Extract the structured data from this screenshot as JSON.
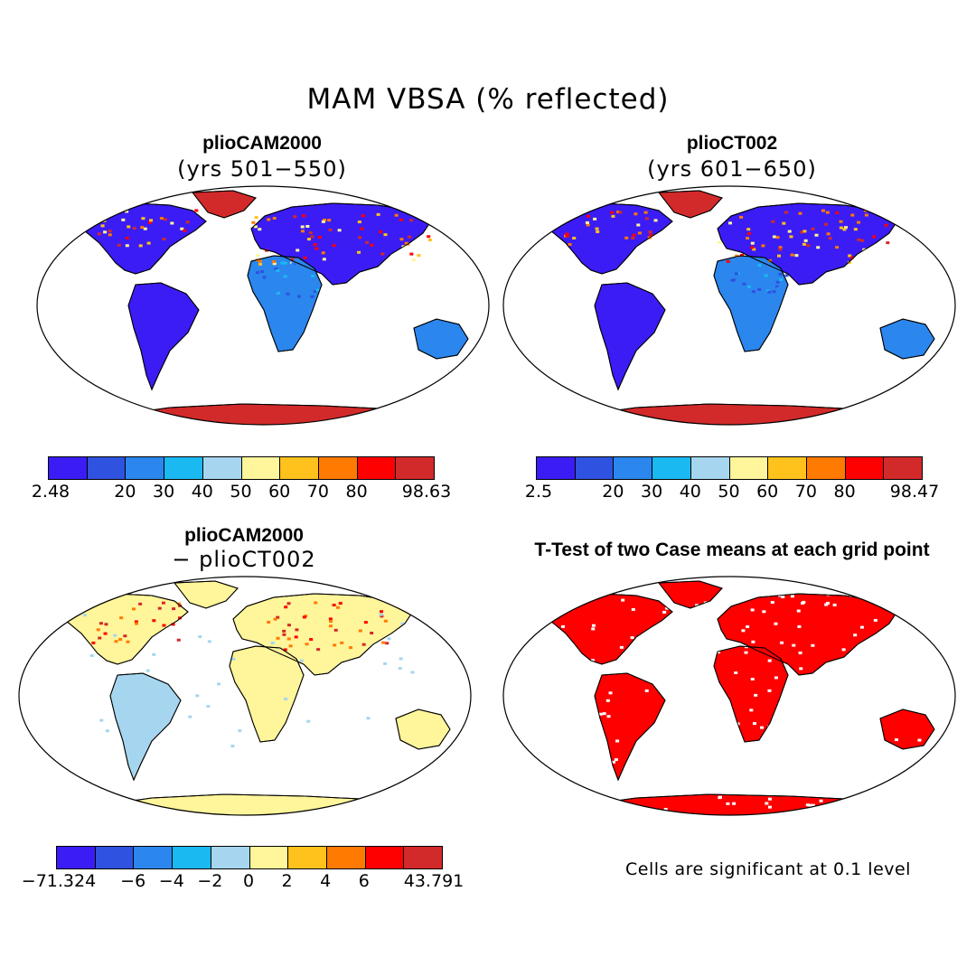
{
  "title": "MAM VBSA (% reflected)",
  "panels": [
    {
      "title": "plioCAM2000",
      "subtitle": "(yrs 501−550)",
      "kind": "scalar",
      "colorbar_labels": [
        "2.48",
        "20",
        "30",
        "40",
        "50",
        "60",
        "70",
        "80",
        "98.63"
      ]
    },
    {
      "title": "plioCT002",
      "subtitle": "(yrs 601−650)",
      "kind": "scalar",
      "colorbar_labels": [
        "2.5",
        "20",
        "30",
        "40",
        "50",
        "60",
        "70",
        "80",
        "98.47"
      ]
    },
    {
      "title": "plioCAM2000",
      "subtitle": "− plioCT002",
      "kind": "difference",
      "colorbar_labels": [
        "−71.324",
        "−6",
        "−4",
        "−2",
        "0",
        "2",
        "4",
        "6",
        "43.791"
      ]
    },
    {
      "title": "T-Test of two Case means at each grid point",
      "subtitle": "",
      "kind": "significance",
      "note": "Cells are significant at 0.1 level"
    }
  ],
  "colors": {
    "scalar_scale": [
      "#3b1cf5",
      "#2f52e0",
      "#2b86ee",
      "#1ab9f2",
      "#a6d6ef",
      "#fff59a",
      "#ffc21c",
      "#ff7a00",
      "#ff0000",
      "#d22a2a"
    ],
    "diff_scale": [
      "#3b1cf5",
      "#2f52e0",
      "#2b86ee",
      "#1ab9f2",
      "#a6d6ef",
      "#fff59a",
      "#ffc21c",
      "#ff7a00",
      "#ff0000",
      "#d22a2a"
    ],
    "significant": "#ff0000",
    "ocean": "#ffffff",
    "coast": "#000000"
  }
}
